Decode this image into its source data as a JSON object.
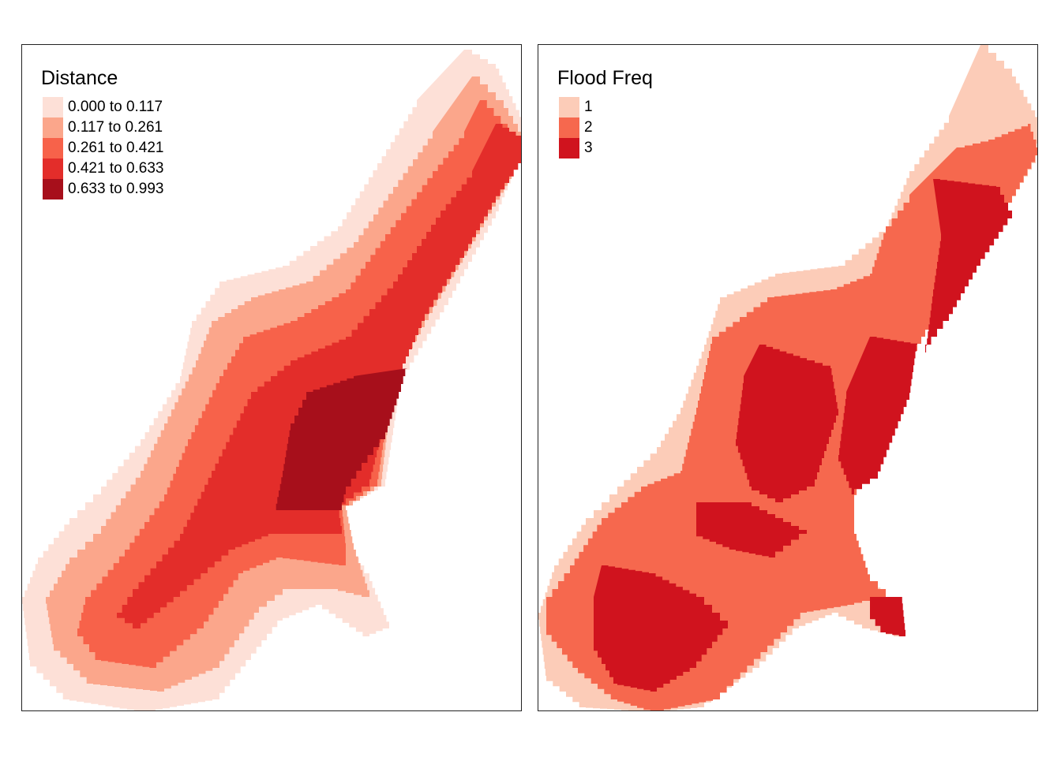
{
  "maps": [
    {
      "legend_title": "Distance",
      "classes": [
        {
          "label": "0.000 to 0.117",
          "color": "#fde0d7"
        },
        {
          "label": "0.117 to 0.261",
          "color": "#fba68b"
        },
        {
          "label": "0.261 to 0.421",
          "color": "#f7624a"
        },
        {
          "label": "0.421 to 0.633",
          "color": "#e32d2a"
        },
        {
          "label": "0.633 to 0.993",
          "color": "#a70f1b"
        }
      ]
    },
    {
      "legend_title": "Flood Freq",
      "classes": [
        {
          "label": "1",
          "color": "#fcccb8"
        },
        {
          "label": "2",
          "color": "#f6684e"
        },
        {
          "label": "3",
          "color": "#d0131e"
        }
      ]
    }
  ]
}
